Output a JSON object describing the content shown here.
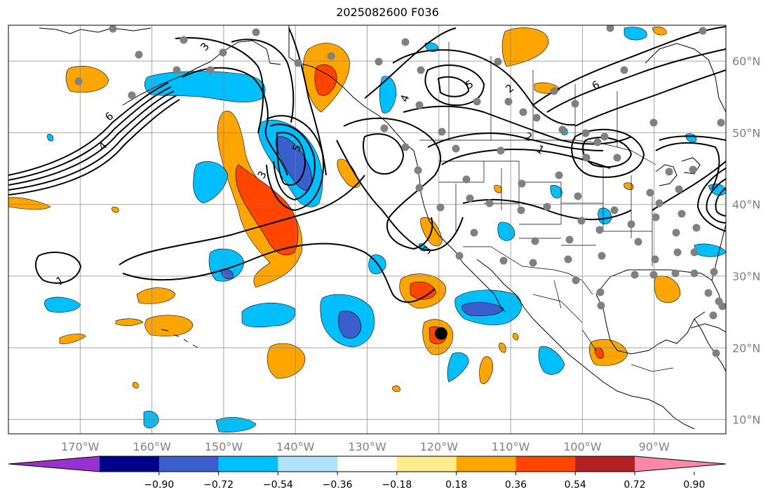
{
  "title": "2025082600 F036",
  "map": {
    "projection": "PlateCarree",
    "lon_range": [
      -180,
      -80
    ],
    "lat_range": [
      8,
      65
    ],
    "lon_ticks": [
      {
        "value": -170,
        "label": "170°W"
      },
      {
        "value": -160,
        "label": "160°W"
      },
      {
        "value": -150,
        "label": "150°W"
      },
      {
        "value": -140,
        "label": "140°W"
      },
      {
        "value": -130,
        "label": "130°W"
      },
      {
        "value": -120,
        "label": "120°W"
      },
      {
        "value": -110,
        "label": "110°W"
      },
      {
        "value": -100,
        "label": "100°W"
      },
      {
        "value": -90,
        "label": "90°W"
      }
    ],
    "lat_ticks": [
      {
        "value": 10,
        "label": "10°N"
      },
      {
        "value": 20,
        "label": "20°N"
      },
      {
        "value": 30,
        "label": "30°N"
      },
      {
        "value": 40,
        "label": "40°N"
      },
      {
        "value": 50,
        "label": "50°N"
      },
      {
        "value": 60,
        "label": "60°N"
      }
    ],
    "marker": {
      "lon": -119.7,
      "lat": 22.0,
      "color": "#000000"
    },
    "station_color": "#808080",
    "contour_label_values": [
      "1",
      "1",
      "2",
      "2",
      "3",
      "3",
      "3",
      "4",
      "4",
      "5",
      "5",
      "6",
      "6"
    ]
  },
  "colorbar": {
    "colors": [
      "#9932CC",
      "#00008B",
      "#3A5FCD",
      "#00BFFF",
      "#B0E2FF",
      "#FFFFFF",
      "#FFEC8B",
      "#FFA500",
      "#FF4500",
      "#B22222",
      "#FF88AA"
    ],
    "tick_labels": [
      "−0.90",
      "−0.72",
      "−0.54",
      "−0.36",
      "−0.18",
      "0.18",
      "0.36",
      "0.54",
      "0.72",
      "0.90"
    ]
  }
}
